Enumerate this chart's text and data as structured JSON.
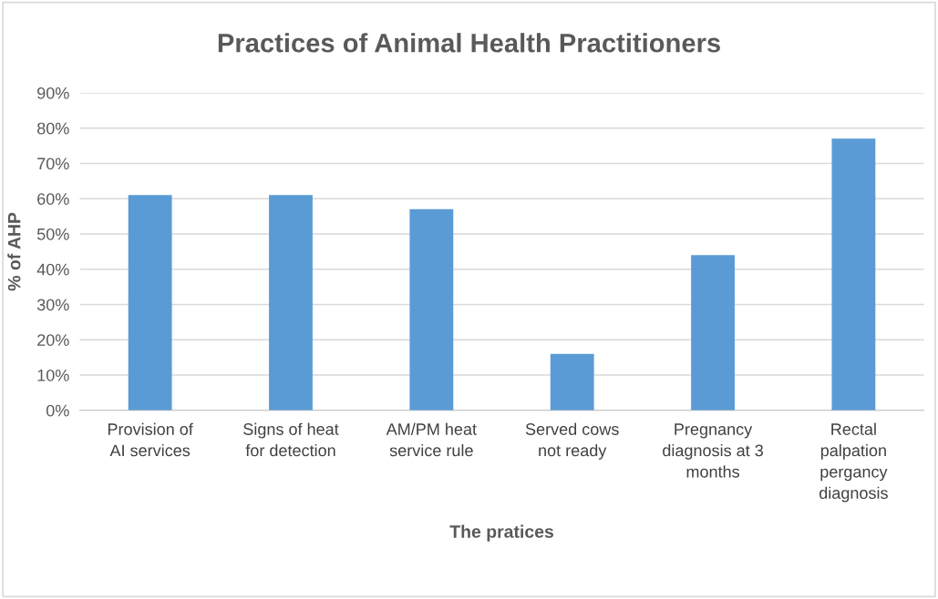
{
  "chart_data": {
    "type": "bar",
    "title": "Practices of Animal Health Practitioners",
    "xlabel": "The pratices",
    "ylabel": "% of AHP",
    "categories": [
      "Provision of\nAI services",
      "Signs of heat\nfor detection",
      "AM/PM heat\nservice rule",
      "Served cows\nnot ready",
      "Pregnancy\ndiagnosis at 3\nmonths",
      "Rectal\npalpation\npergancy\ndiagnosis"
    ],
    "values": [
      61,
      61,
      57,
      16,
      44,
      77
    ],
    "color": "#5b9bd5",
    "ylim": [
      0,
      90
    ],
    "yticks": [
      {
        "value": 0,
        "label": "0%"
      },
      {
        "value": 10,
        "label": "10%"
      },
      {
        "value": 20,
        "label": "20%"
      },
      {
        "value": 30,
        "label": "30%"
      },
      {
        "value": 40,
        "label": "40%"
      },
      {
        "value": 50,
        "label": "50%"
      },
      {
        "value": 60,
        "label": "60%"
      },
      {
        "value": 70,
        "label": "70%"
      },
      {
        "value": 80,
        "label": "80%"
      },
      {
        "value": 90,
        "label": "90%"
      }
    ],
    "grid": "y",
    "legend": false
  }
}
